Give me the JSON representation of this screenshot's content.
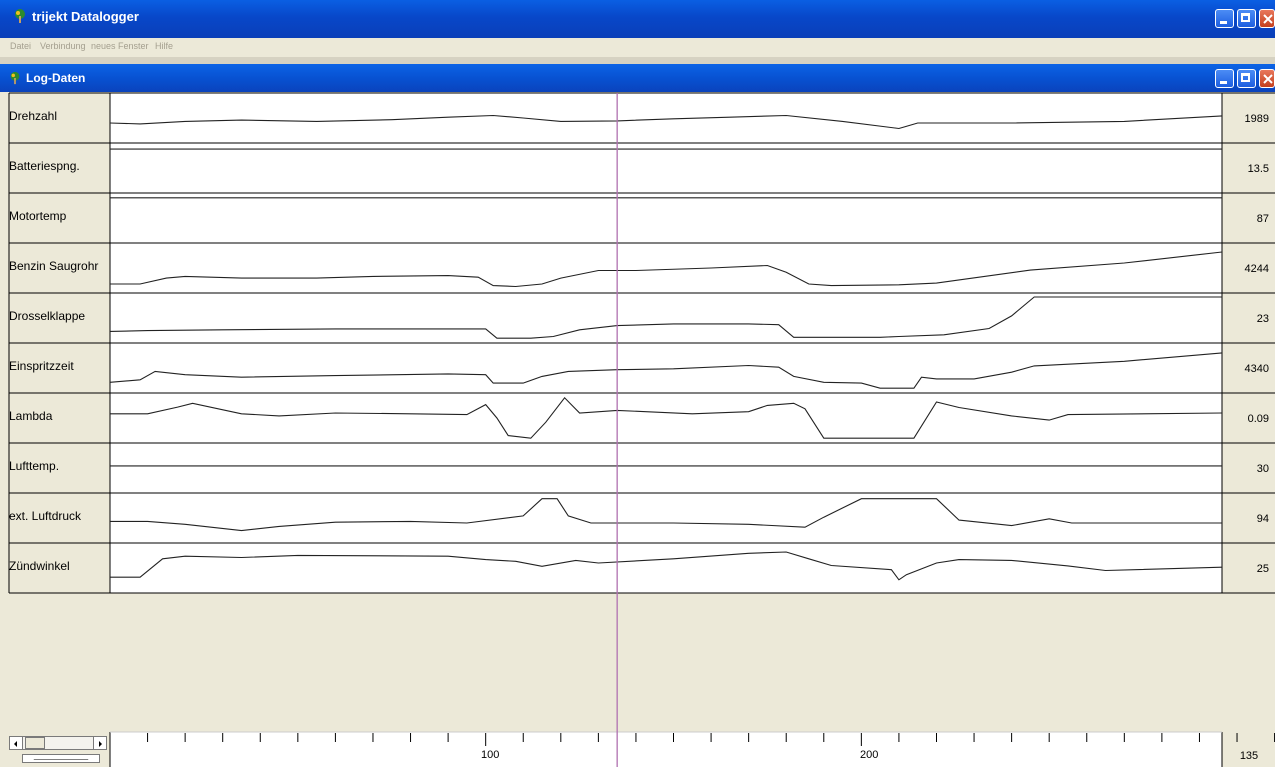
{
  "window": {
    "title": "trijekt Datalogger"
  },
  "menu": {
    "items": [
      "Datei",
      "Verbindung",
      "neues Fenster",
      "Hilfe"
    ]
  },
  "child_window": {
    "title": "Log-Daten"
  },
  "channels": [
    {
      "label": "Drehzahl",
      "value": "1989"
    },
    {
      "label": "Batteriespng.",
      "value": "13.5"
    },
    {
      "label": "Motortemp",
      "value": "87"
    },
    {
      "label": "Benzin Saugrohr",
      "value": "4244"
    },
    {
      "label": "Drosselklappe",
      "value": "23"
    },
    {
      "label": "Einspritzzeit",
      "value": "4340"
    },
    {
      "label": "Lambda",
      "value": "0.09"
    },
    {
      "label": "Lufttemp.",
      "value": "30"
    },
    {
      "label": "ext. Luftdruck",
      "value": "94"
    },
    {
      "label": "Zündwinkel",
      "value": "25"
    }
  ],
  "x_axis": {
    "tick_labels": [
      "100",
      "200"
    ]
  },
  "cursor": {
    "value": "135"
  },
  "colors": {
    "cursor": "#b070b0",
    "titlebar": "#0a5fe3",
    "window_bg": "#ece9d8"
  },
  "icons": [
    "app-icon",
    "minimize-icon",
    "maximize-icon",
    "close-icon"
  ],
  "chart_data": {
    "type": "line",
    "x_ticks_labeled": [
      100,
      200
    ],
    "x_minor_ticks": [
      10,
      20,
      30,
      40,
      50,
      60,
      70,
      80,
      90,
      100,
      110,
      120,
      130,
      140,
      150,
      160,
      170,
      180,
      190,
      200,
      210,
      220,
      230,
      240,
      250,
      260,
      270,
      280,
      290,
      300,
      310
    ],
    "cursor_x": 135,
    "series": [
      {
        "name": "Drehzahl",
        "x": [
          0,
          8,
          20,
          35,
          55,
          75,
          90,
          102,
          110,
          120,
          135,
          150,
          165,
          180,
          195,
          210,
          215,
          240,
          270,
          296
        ],
        "y": [
          0.38,
          0.36,
          0.42,
          0.45,
          0.42,
          0.46,
          0.52,
          0.56,
          0.5,
          0.42,
          0.43,
          0.48,
          0.52,
          0.56,
          0.42,
          0.25,
          0.38,
          0.38,
          0.42,
          0.55
        ]
      },
      {
        "name": "Batteriespng.",
        "x": [
          0,
          296
        ],
        "y": [
          0.95,
          0.95
        ]
      },
      {
        "name": "Motortemp",
        "x": [
          0,
          296
        ],
        "y": [
          0.98,
          0.98
        ]
      },
      {
        "name": "Benzin Saugrohr",
        "x": [
          0,
          8,
          15,
          20,
          35,
          55,
          70,
          90,
          98,
          102,
          108,
          115,
          120,
          130,
          140,
          160,
          175,
          180,
          186,
          192,
          210,
          220,
          245,
          270,
          296
        ],
        "y": [
          0.12,
          0.12,
          0.26,
          0.3,
          0.26,
          0.26,
          0.3,
          0.32,
          0.28,
          0.08,
          0.06,
          0.12,
          0.26,
          0.44,
          0.44,
          0.5,
          0.56,
          0.4,
          0.12,
          0.08,
          0.1,
          0.14,
          0.45,
          0.62,
          0.88
        ]
      },
      {
        "name": "Drosselklappe",
        "x": [
          0,
          10,
          30,
          60,
          100,
          103,
          112,
          118,
          125,
          135,
          150,
          170,
          178,
          182,
          192,
          200,
          205,
          210,
          222,
          234,
          240,
          246,
          296
        ],
        "y": [
          0.18,
          0.2,
          0.22,
          0.24,
          0.24,
          0.02,
          0.02,
          0.06,
          0.22,
          0.32,
          0.36,
          0.36,
          0.34,
          0.04,
          0.04,
          0.04,
          0.04,
          0.06,
          0.1,
          0.25,
          0.55,
          1.0,
          1.0
        ]
      },
      {
        "name": "Einspritzzeit",
        "x": [
          0,
          8,
          12,
          20,
          35,
          60,
          90,
          100,
          102,
          110,
          115,
          122,
          135,
          150,
          170,
          178,
          182,
          190,
          200,
          205,
          214,
          216,
          220,
          230,
          240,
          246,
          270,
          296
        ],
        "y": [
          0.16,
          0.22,
          0.42,
          0.34,
          0.28,
          0.32,
          0.36,
          0.34,
          0.14,
          0.14,
          0.3,
          0.42,
          0.46,
          0.48,
          0.56,
          0.52,
          0.3,
          0.16,
          0.14,
          0.02,
          0.02,
          0.28,
          0.24,
          0.24,
          0.4,
          0.55,
          0.66,
          0.86
        ]
      },
      {
        "name": "Lambda",
        "x": [
          0,
          10,
          18,
          22,
          35,
          45,
          60,
          80,
          95,
          100,
          103,
          106,
          112,
          116,
          121,
          125,
          135,
          155,
          170,
          175,
          182,
          185,
          190,
          200,
          208,
          214,
          220,
          226,
          240,
          250,
          255,
          296
        ],
        "y": [
          0.6,
          0.6,
          0.76,
          0.85,
          0.6,
          0.55,
          0.62,
          0.6,
          0.58,
          0.82,
          0.5,
          0.08,
          0.02,
          0.4,
          0.98,
          0.62,
          0.68,
          0.6,
          0.65,
          0.8,
          0.85,
          0.72,
          0.02,
          0.02,
          0.02,
          0.02,
          0.88,
          0.75,
          0.55,
          0.45,
          0.58,
          0.62
        ]
      },
      {
        "name": "Lufttemp.",
        "x": [
          0,
          296
        ],
        "y": [
          0.55,
          0.55
        ]
      },
      {
        "name": "ext. Luftdruck",
        "x": [
          0,
          10,
          20,
          35,
          45,
          60,
          80,
          95,
          110,
          115,
          119,
          122,
          128,
          150,
          170,
          185,
          190,
          200,
          210,
          215,
          220,
          226,
          240,
          250,
          256,
          296
        ],
        "y": [
          0.42,
          0.42,
          0.35,
          0.2,
          0.3,
          0.4,
          0.42,
          0.38,
          0.55,
          0.96,
          0.96,
          0.55,
          0.38,
          0.38,
          0.35,
          0.28,
          0.52,
          0.96,
          0.96,
          0.96,
          0.96,
          0.45,
          0.32,
          0.48,
          0.38,
          0.38
        ]
      },
      {
        "name": "Zündwinkel",
        "x": [
          0,
          8,
          14,
          20,
          35,
          50,
          90,
          100,
          108,
          115,
          124,
          130,
          150,
          170,
          180,
          186,
          192,
          208,
          210,
          212,
          220,
          226,
          240,
          255,
          265,
          296
        ],
        "y": [
          0.28,
          0.28,
          0.72,
          0.78,
          0.75,
          0.8,
          0.78,
          0.7,
          0.66,
          0.54,
          0.68,
          0.62,
          0.72,
          0.85,
          0.88,
          0.72,
          0.56,
          0.46,
          0.22,
          0.34,
          0.62,
          0.7,
          0.68,
          0.55,
          0.44,
          0.52
        ]
      }
    ]
  }
}
